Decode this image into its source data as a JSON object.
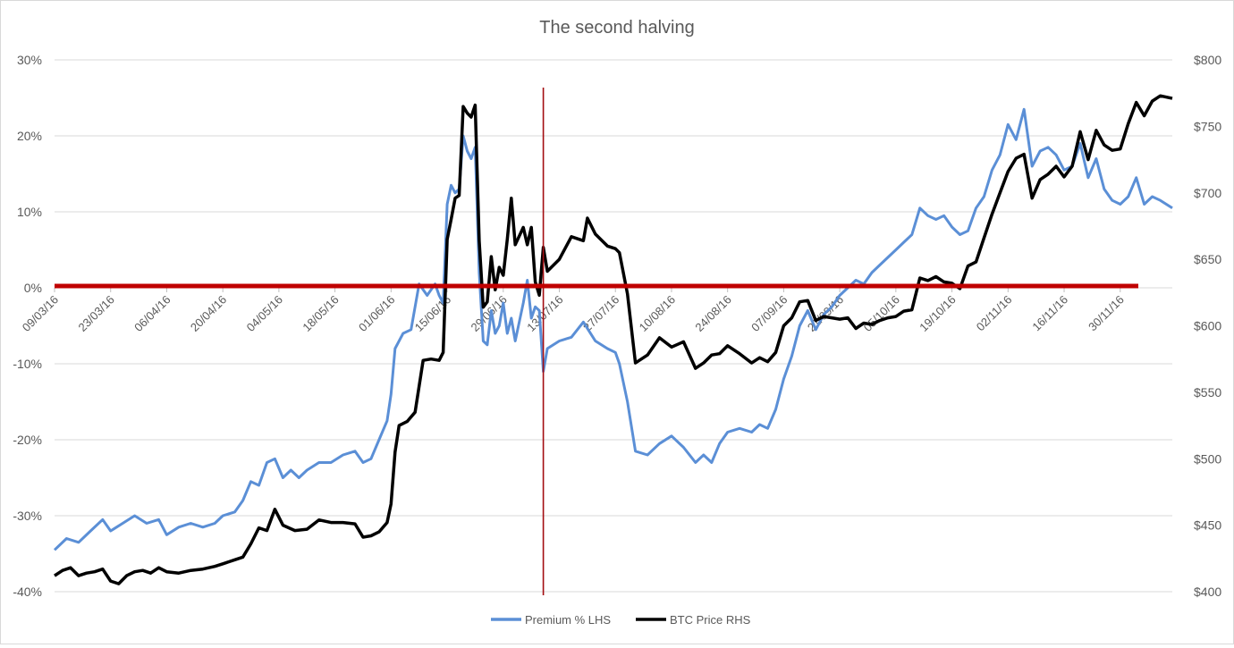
{
  "chart_data": {
    "type": "line",
    "title": "The second halving",
    "x_tick_labels": [
      "09/03/16",
      "23/03/16",
      "06/04/16",
      "20/04/16",
      "04/05/16",
      "18/05/16",
      "01/06/16",
      "15/06/16",
      "29/06/16",
      "13/07/16",
      "27/07/16",
      "10/08/16",
      "24/08/16",
      "07/09/16",
      "21/09/16",
      "05/10/16",
      "19/10/16",
      "02/11/16",
      "16/11/16",
      "30/11/16"
    ],
    "x_range": [
      "09/03/16",
      "13/12/16"
    ],
    "left_axis": {
      "ticks": [
        "30%",
        "20%",
        "10%",
        "0%",
        "-10%",
        "-20%",
        "-30%",
        "-40%"
      ],
      "ylim": [
        -40,
        30
      ]
    },
    "right_axis": {
      "ticks": [
        "$800",
        "$750",
        "$700",
        "$650",
        "$600",
        "$550",
        "$500",
        "$450",
        "$400"
      ],
      "ylim": [
        400,
        800
      ]
    },
    "grid": true,
    "legend_position": "bottom",
    "halving_marker_date": "09/07/16",
    "reference_line": {
      "axis": "left",
      "value": 0
    },
    "series": [
      {
        "name": "Premium % LHS",
        "axis": "left",
        "color": "#5b8fd6",
        "points": [
          [
            "09/03/16",
            -34.5
          ],
          [
            "12/03/16",
            -33
          ],
          [
            "15/03/16",
            -33.5
          ],
          [
            "18/03/16",
            -32
          ],
          [
            "21/03/16",
            -30.5
          ],
          [
            "23/03/16",
            -32
          ],
          [
            "26/03/16",
            -31
          ],
          [
            "29/03/16",
            -30
          ],
          [
            "01/04/16",
            -31
          ],
          [
            "04/04/16",
            -30.5
          ],
          [
            "06/04/16",
            -32.5
          ],
          [
            "09/04/16",
            -31.5
          ],
          [
            "12/04/16",
            -31
          ],
          [
            "15/04/16",
            -31.5
          ],
          [
            "18/04/16",
            -31
          ],
          [
            "20/04/16",
            -30
          ],
          [
            "23/04/16",
            -29.5
          ],
          [
            "25/04/16",
            -28
          ],
          [
            "27/04/16",
            -25.5
          ],
          [
            "29/04/16",
            -26
          ],
          [
            "01/05/16",
            -23
          ],
          [
            "03/05/16",
            -22.5
          ],
          [
            "05/05/16",
            -25
          ],
          [
            "07/05/16",
            -24
          ],
          [
            "09/05/16",
            -25
          ],
          [
            "11/05/16",
            -24
          ],
          [
            "14/05/16",
            -23
          ],
          [
            "17/05/16",
            -23
          ],
          [
            "20/05/16",
            -22
          ],
          [
            "23/05/16",
            -21.5
          ],
          [
            "25/05/16",
            -23
          ],
          [
            "27/05/16",
            -22.5
          ],
          [
            "29/05/16",
            -20
          ],
          [
            "31/05/16",
            -17.5
          ],
          [
            "01/06/16",
            -14
          ],
          [
            "02/06/16",
            -8
          ],
          [
            "04/06/16",
            -6
          ],
          [
            "06/06/16",
            -5.5
          ],
          [
            "08/06/16",
            0.5
          ],
          [
            "10/06/16",
            -1
          ],
          [
            "12/06/16",
            0.5
          ],
          [
            "13/06/16",
            -1
          ],
          [
            "14/06/16",
            -2
          ],
          [
            "15/06/16",
            11
          ],
          [
            "16/06/16",
            13.5
          ],
          [
            "17/06/16",
            12.5
          ],
          [
            "18/06/16",
            13
          ],
          [
            "19/06/16",
            20
          ],
          [
            "20/06/16",
            18
          ],
          [
            "21/06/16",
            17
          ],
          [
            "22/06/16",
            18.5
          ],
          [
            "23/06/16",
            2
          ],
          [
            "24/06/16",
            -7
          ],
          [
            "25/06/16",
            -7.5
          ],
          [
            "26/06/16",
            -3
          ],
          [
            "27/06/16",
            -6
          ],
          [
            "28/06/16",
            -5
          ],
          [
            "29/06/16",
            -2
          ],
          [
            "30/06/16",
            -6
          ],
          [
            "01/07/16",
            -4
          ],
          [
            "02/07/16",
            -7
          ],
          [
            "04/07/16",
            -2
          ],
          [
            "05/07/16",
            1
          ],
          [
            "06/07/16",
            -4
          ],
          [
            "07/07/16",
            -2.5
          ],
          [
            "08/07/16",
            -3
          ],
          [
            "09/07/16",
            -11
          ],
          [
            "10/07/16",
            -8
          ],
          [
            "13/07/16",
            -7
          ],
          [
            "16/07/16",
            -6.5
          ],
          [
            "19/07/16",
            -4.5
          ],
          [
            "22/07/16",
            -7
          ],
          [
            "25/07/16",
            -8
          ],
          [
            "27/07/16",
            -8.5
          ],
          [
            "28/07/16",
            -10
          ],
          [
            "30/07/16",
            -15
          ],
          [
            "01/08/16",
            -21.5
          ],
          [
            "04/08/16",
            -22
          ],
          [
            "07/08/16",
            -20.5
          ],
          [
            "10/08/16",
            -19.5
          ],
          [
            "13/08/16",
            -21
          ],
          [
            "16/08/16",
            -23
          ],
          [
            "18/08/16",
            -22
          ],
          [
            "20/08/16",
            -23
          ],
          [
            "22/08/16",
            -20.5
          ],
          [
            "24/08/16",
            -19
          ],
          [
            "27/08/16",
            -18.5
          ],
          [
            "30/08/16",
            -19
          ],
          [
            "01/09/16",
            -18
          ],
          [
            "03/09/16",
            -18.5
          ],
          [
            "05/09/16",
            -16
          ],
          [
            "07/09/16",
            -12
          ],
          [
            "09/09/16",
            -9
          ],
          [
            "11/09/16",
            -5
          ],
          [
            "13/09/16",
            -3
          ],
          [
            "15/09/16",
            -5.5
          ],
          [
            "17/09/16",
            -3.5
          ],
          [
            "19/09/16",
            -2.5
          ],
          [
            "21/09/16",
            -1
          ],
          [
            "23/09/16",
            0
          ],
          [
            "25/09/16",
            1
          ],
          [
            "27/09/16",
            0.5
          ],
          [
            "29/09/16",
            2
          ],
          [
            "01/10/16",
            3
          ],
          [
            "03/10/16",
            4
          ],
          [
            "05/10/16",
            5
          ],
          [
            "07/10/16",
            6
          ],
          [
            "09/10/16",
            7
          ],
          [
            "11/10/16",
            10.5
          ],
          [
            "13/10/16",
            9.5
          ],
          [
            "15/10/16",
            9
          ],
          [
            "17/10/16",
            9.5
          ],
          [
            "19/10/16",
            8
          ],
          [
            "21/10/16",
            7
          ],
          [
            "23/10/16",
            7.5
          ],
          [
            "25/10/16",
            10.5
          ],
          [
            "27/10/16",
            12
          ],
          [
            "29/10/16",
            15.5
          ],
          [
            "31/10/16",
            17.5
          ],
          [
            "02/11/16",
            21.5
          ],
          [
            "04/11/16",
            19.5
          ],
          [
            "06/11/16",
            23.5
          ],
          [
            "08/11/16",
            16
          ],
          [
            "10/11/16",
            18
          ],
          [
            "12/11/16",
            18.5
          ],
          [
            "14/11/16",
            17.5
          ],
          [
            "16/11/16",
            15.5
          ],
          [
            "18/11/16",
            16
          ],
          [
            "20/11/16",
            19
          ],
          [
            "22/11/16",
            14.5
          ],
          [
            "24/11/16",
            17
          ],
          [
            "26/11/16",
            13
          ],
          [
            "28/11/16",
            11.5
          ],
          [
            "30/11/16",
            11
          ],
          [
            "02/12/16",
            12
          ],
          [
            "04/12/16",
            14.5
          ],
          [
            "06/12/16",
            11
          ],
          [
            "08/12/16",
            12
          ],
          [
            "10/12/16",
            11.5
          ],
          [
            "13/12/16",
            10.5
          ]
        ]
      },
      {
        "name": "BTC Price RHS",
        "axis": "right",
        "color": "#000000",
        "points": [
          [
            "09/03/16",
            412
          ],
          [
            "11/03/16",
            416
          ],
          [
            "13/03/16",
            418
          ],
          [
            "15/03/16",
            412
          ],
          [
            "17/03/16",
            414
          ],
          [
            "19/03/16",
            415
          ],
          [
            "21/03/16",
            417
          ],
          [
            "23/03/16",
            408
          ],
          [
            "25/03/16",
            406
          ],
          [
            "27/03/16",
            412
          ],
          [
            "29/03/16",
            415
          ],
          [
            "31/03/16",
            416
          ],
          [
            "02/04/16",
            414
          ],
          [
            "04/04/16",
            418
          ],
          [
            "06/04/16",
            415
          ],
          [
            "09/04/16",
            414
          ],
          [
            "12/04/16",
            416
          ],
          [
            "15/04/16",
            417
          ],
          [
            "18/04/16",
            419
          ],
          [
            "20/04/16",
            421
          ],
          [
            "23/04/16",
            424
          ],
          [
            "25/04/16",
            426
          ],
          [
            "27/04/16",
            436
          ],
          [
            "29/04/16",
            448
          ],
          [
            "01/05/16",
            446
          ],
          [
            "03/05/16",
            462
          ],
          [
            "05/05/16",
            450
          ],
          [
            "08/05/16",
            446
          ],
          [
            "11/05/16",
            447
          ],
          [
            "14/05/16",
            454
          ],
          [
            "17/05/16",
            452
          ],
          [
            "20/05/16",
            452
          ],
          [
            "23/05/16",
            451
          ],
          [
            "25/05/16",
            441
          ],
          [
            "27/05/16",
            442
          ],
          [
            "29/05/16",
            445
          ],
          [
            "31/05/16",
            452
          ],
          [
            "01/06/16",
            466
          ],
          [
            "02/06/16",
            505
          ],
          [
            "03/06/16",
            525
          ],
          [
            "05/06/16",
            528
          ],
          [
            "07/06/16",
            535
          ],
          [
            "09/06/16",
            574
          ],
          [
            "11/06/16",
            575
          ],
          [
            "13/06/16",
            574
          ],
          [
            "14/06/16",
            580
          ],
          [
            "15/06/16",
            665
          ],
          [
            "16/06/16",
            680
          ],
          [
            "17/06/16",
            696
          ],
          [
            "18/06/16",
            698
          ],
          [
            "19/06/16",
            765
          ],
          [
            "20/06/16",
            760
          ],
          [
            "21/06/16",
            757
          ],
          [
            "22/06/16",
            766
          ],
          [
            "23/06/16",
            664
          ],
          [
            "24/06/16",
            614
          ],
          [
            "25/06/16",
            618
          ],
          [
            "26/06/16",
            652
          ],
          [
            "27/06/16",
            627
          ],
          [
            "28/06/16",
            644
          ],
          [
            "29/06/16",
            638
          ],
          [
            "30/06/16",
            665
          ],
          [
            "01/07/16",
            696
          ],
          [
            "02/07/16",
            661
          ],
          [
            "04/07/16",
            674
          ],
          [
            "05/07/16",
            661
          ],
          [
            "06/07/16",
            674
          ],
          [
            "07/07/16",
            633
          ],
          [
            "08/07/16",
            623
          ],
          [
            "09/07/16",
            659
          ],
          [
            "10/07/16",
            641
          ],
          [
            "13/07/16",
            650
          ],
          [
            "16/07/16",
            667
          ],
          [
            "19/07/16",
            664
          ],
          [
            "20/07/16",
            681
          ],
          [
            "22/07/16",
            669
          ],
          [
            "25/07/16",
            660
          ],
          [
            "27/07/16",
            658
          ],
          [
            "28/07/16",
            655
          ],
          [
            "30/07/16",
            624
          ],
          [
            "01/08/16",
            572
          ],
          [
            "04/08/16",
            578
          ],
          [
            "07/08/16",
            591
          ],
          [
            "10/08/16",
            584
          ],
          [
            "13/08/16",
            588
          ],
          [
            "16/08/16",
            568
          ],
          [
            "18/08/16",
            572
          ],
          [
            "20/08/16",
            578
          ],
          [
            "22/08/16",
            579
          ],
          [
            "24/08/16",
            585
          ],
          [
            "27/08/16",
            579
          ],
          [
            "30/08/16",
            572
          ],
          [
            "01/09/16",
            576
          ],
          [
            "03/09/16",
            573
          ],
          [
            "05/09/16",
            580
          ],
          [
            "07/09/16",
            600
          ],
          [
            "09/09/16",
            606
          ],
          [
            "11/09/16",
            618
          ],
          [
            "13/09/16",
            619
          ],
          [
            "15/09/16",
            604
          ],
          [
            "17/09/16",
            607
          ],
          [
            "19/09/16",
            606
          ],
          [
            "21/09/16",
            605
          ],
          [
            "23/09/16",
            606
          ],
          [
            "25/09/16",
            598
          ],
          [
            "27/09/16",
            602
          ],
          [
            "29/09/16",
            601
          ],
          [
            "01/10/16",
            604
          ],
          [
            "03/10/16",
            606
          ],
          [
            "05/10/16",
            607
          ],
          [
            "07/10/16",
            611
          ],
          [
            "09/10/16",
            612
          ],
          [
            "11/10/16",
            636
          ],
          [
            "13/10/16",
            634
          ],
          [
            "15/10/16",
            637
          ],
          [
            "17/10/16",
            633
          ],
          [
            "19/10/16",
            632
          ],
          [
            "21/10/16",
            628
          ],
          [
            "23/10/16",
            645
          ],
          [
            "25/10/16",
            648
          ],
          [
            "27/10/16",
            666
          ],
          [
            "29/10/16",
            684
          ],
          [
            "31/10/16",
            700
          ],
          [
            "02/11/16",
            716
          ],
          [
            "04/11/16",
            726
          ],
          [
            "06/11/16",
            729
          ],
          [
            "08/11/16",
            696
          ],
          [
            "10/11/16",
            710
          ],
          [
            "12/11/16",
            714
          ],
          [
            "14/11/16",
            720
          ],
          [
            "16/11/16",
            712
          ],
          [
            "18/11/16",
            720
          ],
          [
            "20/11/16",
            746
          ],
          [
            "22/11/16",
            725
          ],
          [
            "24/11/16",
            747
          ],
          [
            "26/11/16",
            736
          ],
          [
            "28/11/16",
            732
          ],
          [
            "30/11/16",
            733
          ],
          [
            "02/12/16",
            752
          ],
          [
            "04/12/16",
            768
          ],
          [
            "06/12/16",
            758
          ],
          [
            "08/12/16",
            769
          ],
          [
            "10/12/16",
            773
          ],
          [
            "13/12/16",
            771
          ]
        ]
      }
    ]
  }
}
